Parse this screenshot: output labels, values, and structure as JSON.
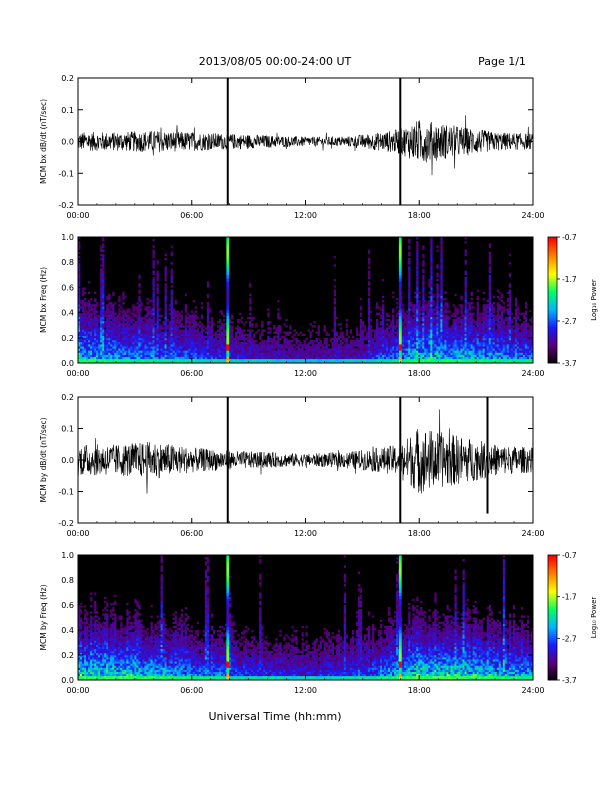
{
  "header": {
    "title": "2013/08/05  00:00-24:00 UT",
    "page": "Page 1/1"
  },
  "footer": {
    "xlabel": "Universal Time (hh:mm)"
  },
  "colorbar": {
    "label": "Log₁₀ Power",
    "ticks": [
      -0.7,
      -1.7,
      -2.7,
      -3.7
    ],
    "range": [
      -3.7,
      -0.7
    ],
    "colors": [
      "#000000",
      "#5a007a",
      "#1a1aff",
      "#00b4ff",
      "#00ff60",
      "#ffff00",
      "#ff8000",
      "#ff0000"
    ]
  },
  "chart_data": [
    {
      "type": "line",
      "ylabel": "MCM bx dB/dt (nT/sec)",
      "x_ticks": [
        "00:00",
        "06:00",
        "12:00",
        "18:00",
        "24:00"
      ],
      "xlim": [
        0,
        24
      ],
      "ylim": [
        -0.2,
        0.2
      ],
      "y_ticks": [
        "0.2",
        "0.1",
        "0.0",
        "-0.1",
        "-0.2"
      ],
      "envelope": [
        {
          "x": 0,
          "y": 0.03
        },
        {
          "x": 2,
          "y": 0.03
        },
        {
          "x": 4,
          "y": 0.035
        },
        {
          "x": 6,
          "y": 0.03
        },
        {
          "x": 8,
          "y": 0.025
        },
        {
          "x": 10,
          "y": 0.02
        },
        {
          "x": 12,
          "y": 0.015
        },
        {
          "x": 14,
          "y": 0.015
        },
        {
          "x": 16,
          "y": 0.03
        },
        {
          "x": 17,
          "y": 0.04
        },
        {
          "x": 18,
          "y": 0.07
        },
        {
          "x": 19,
          "y": 0.06
        },
        {
          "x": 20,
          "y": 0.05
        },
        {
          "x": 22,
          "y": 0.03
        },
        {
          "x": 24,
          "y": 0.025
        }
      ],
      "spikes": [
        {
          "x": 7.9,
          "min": -0.2,
          "max": 0.2
        },
        {
          "x": 17.0,
          "min": -0.2,
          "max": 0.2
        }
      ]
    },
    {
      "type": "heatmap",
      "ylabel": "MCM bx Freq (Hz)",
      "x_ticks": [
        "00:00",
        "06:00",
        "12:00",
        "18:00",
        "24:00"
      ],
      "xlim": [
        0,
        24
      ],
      "ylim": [
        0.0,
        1.0
      ],
      "y_ticks": [
        "1.0",
        "0.8",
        "0.6",
        "0.4",
        "0.2",
        "0.0"
      ],
      "activity": [
        {
          "x": 0,
          "level": 0.7
        },
        {
          "x": 3,
          "level": 0.6
        },
        {
          "x": 6,
          "level": 0.5
        },
        {
          "x": 9,
          "level": 0.35
        },
        {
          "x": 12,
          "level": 0.3
        },
        {
          "x": 15,
          "level": 0.35
        },
        {
          "x": 18,
          "level": 0.7
        },
        {
          "x": 21,
          "level": 0.65
        },
        {
          "x": 24,
          "level": 0.55
        }
      ],
      "broadband_lines": [
        7.9,
        17.0
      ]
    },
    {
      "type": "line",
      "ylabel": "MCM by dB/dt (nT/sec)",
      "x_ticks": [
        "00:00",
        "06:00",
        "12:00",
        "18:00",
        "24:00"
      ],
      "xlim": [
        0,
        24
      ],
      "ylim": [
        -0.2,
        0.2
      ],
      "y_ticks": [
        "0.2",
        "0.1",
        "0.0",
        "-0.1",
        "-0.2"
      ],
      "envelope": [
        {
          "x": 0,
          "y": 0.05
        },
        {
          "x": 2,
          "y": 0.05
        },
        {
          "x": 4,
          "y": 0.06
        },
        {
          "x": 6,
          "y": 0.04
        },
        {
          "x": 8,
          "y": 0.03
        },
        {
          "x": 10,
          "y": 0.025
        },
        {
          "x": 12,
          "y": 0.02
        },
        {
          "x": 14,
          "y": 0.025
        },
        {
          "x": 16,
          "y": 0.04
        },
        {
          "x": 17,
          "y": 0.05
        },
        {
          "x": 18,
          "y": 0.11
        },
        {
          "x": 19,
          "y": 0.09
        },
        {
          "x": 20,
          "y": 0.08
        },
        {
          "x": 22,
          "y": 0.05
        },
        {
          "x": 24,
          "y": 0.04
        }
      ],
      "spikes": [
        {
          "x": 7.9,
          "min": -0.2,
          "max": 0.2
        },
        {
          "x": 17.0,
          "min": -0.2,
          "max": 0.2
        },
        {
          "x": 21.6,
          "min": -0.17,
          "max": 0.2
        }
      ]
    },
    {
      "type": "heatmap",
      "ylabel": "MCM by Freq (Hz)",
      "x_ticks": [
        "00:00",
        "06:00",
        "12:00",
        "18:00",
        "24:00"
      ],
      "xlim": [
        0,
        24
      ],
      "ylim": [
        0.0,
        1.0
      ],
      "y_ticks": [
        "1.0",
        "0.8",
        "0.6",
        "0.4",
        "0.2",
        "0.0"
      ],
      "activity": [
        {
          "x": 0,
          "level": 0.8
        },
        {
          "x": 3,
          "level": 0.75
        },
        {
          "x": 6,
          "level": 0.6
        },
        {
          "x": 9,
          "level": 0.45
        },
        {
          "x": 12,
          "level": 0.4
        },
        {
          "x": 15,
          "level": 0.45
        },
        {
          "x": 18,
          "level": 0.8
        },
        {
          "x": 21,
          "level": 0.75
        },
        {
          "x": 24,
          "level": 0.6
        }
      ],
      "broadband_lines": [
        7.9,
        17.0
      ]
    }
  ]
}
